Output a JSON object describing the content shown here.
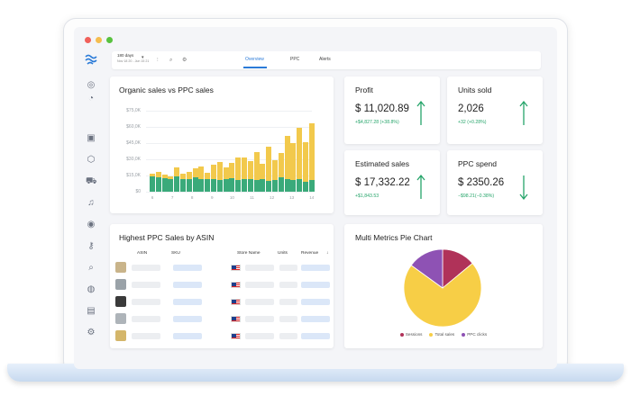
{
  "toolbar": {
    "date_range": "180 days",
    "date_sub": "Nov 18 20 - Jun 15 21",
    "tabs": [
      "Overview",
      "PPC",
      "Alerts"
    ]
  },
  "organic_card": {
    "title": "Organic sales vs PPC sales"
  },
  "metrics": {
    "profit": {
      "title": "Profit",
      "value": "$ 11,020.89",
      "delta": "+$4,827.28 (+38.8%)"
    },
    "units": {
      "title": "Units sold",
      "value": "2,026",
      "delta": "+32 (+0.28%)"
    },
    "estimated": {
      "title": "Estimated sales",
      "value": "$ 17,332.22",
      "delta": "+$1,843.53"
    },
    "ppc": {
      "title": "PPC spend",
      "value": "$ 2350.26",
      "delta": "−$98.21(−0.38%)"
    }
  },
  "table_card": {
    "title": "Highest PPC Sales by ASIN",
    "headers": [
      "ASIN",
      "SKU",
      "Store Name",
      "Units",
      "Revenue"
    ]
  },
  "pie_card": {
    "title": "Multi Metrics Pie Chart"
  },
  "chart_data": [
    {
      "type": "bar",
      "stacked": true,
      "title": "Organic sales vs PPC sales",
      "yticks": [
        "$0",
        "$15,0K",
        "$30,0K",
        "$45,0K",
        "$60,0K",
        "$75,0K"
      ],
      "ylim": [
        0,
        75000
      ],
      "xticks": [
        "6",
        "7",
        "8",
        "9",
        "10",
        "11",
        "12",
        "13",
        "14"
      ],
      "series": [
        {
          "color": "#3aaa7a",
          "values": [
            14000,
            13000,
            12500,
            12000,
            14500,
            12000,
            11500,
            13000,
            12000,
            11500,
            12000,
            10500,
            11500,
            12500,
            11000,
            12000,
            11500,
            10500,
            11500,
            10000,
            11000,
            13000,
            11500,
            11000,
            12000,
            9500,
            11000
          ]
        },
        {
          "color": "#f2c94c",
          "values": [
            2500,
            5000,
            3000,
            2000,
            8000,
            5000,
            7000,
            9000,
            11000,
            6000,
            13000,
            17000,
            11000,
            14000,
            21000,
            20000,
            17000,
            26000,
            14000,
            32000,
            18000,
            23000,
            40000,
            34000,
            47000,
            36000,
            52000
          ]
        }
      ],
      "bar_count": 27,
      "grid": true
    },
    {
      "type": "pie",
      "title": "Multi Metrics Pie Chart",
      "labels": [
        "Sessions",
        "Total sales",
        "PPC clicks"
      ],
      "values": [
        14,
        71,
        15
      ],
      "colors": [
        "#b03259",
        "#f7ce46",
        "#8e52b4"
      ]
    }
  ],
  "colors": {
    "accent": "#2b7bd8",
    "positive": "#27a56b",
    "negative": "#27a56b",
    "organic": "#3aaa7a",
    "ppc": "#f2c94c"
  }
}
